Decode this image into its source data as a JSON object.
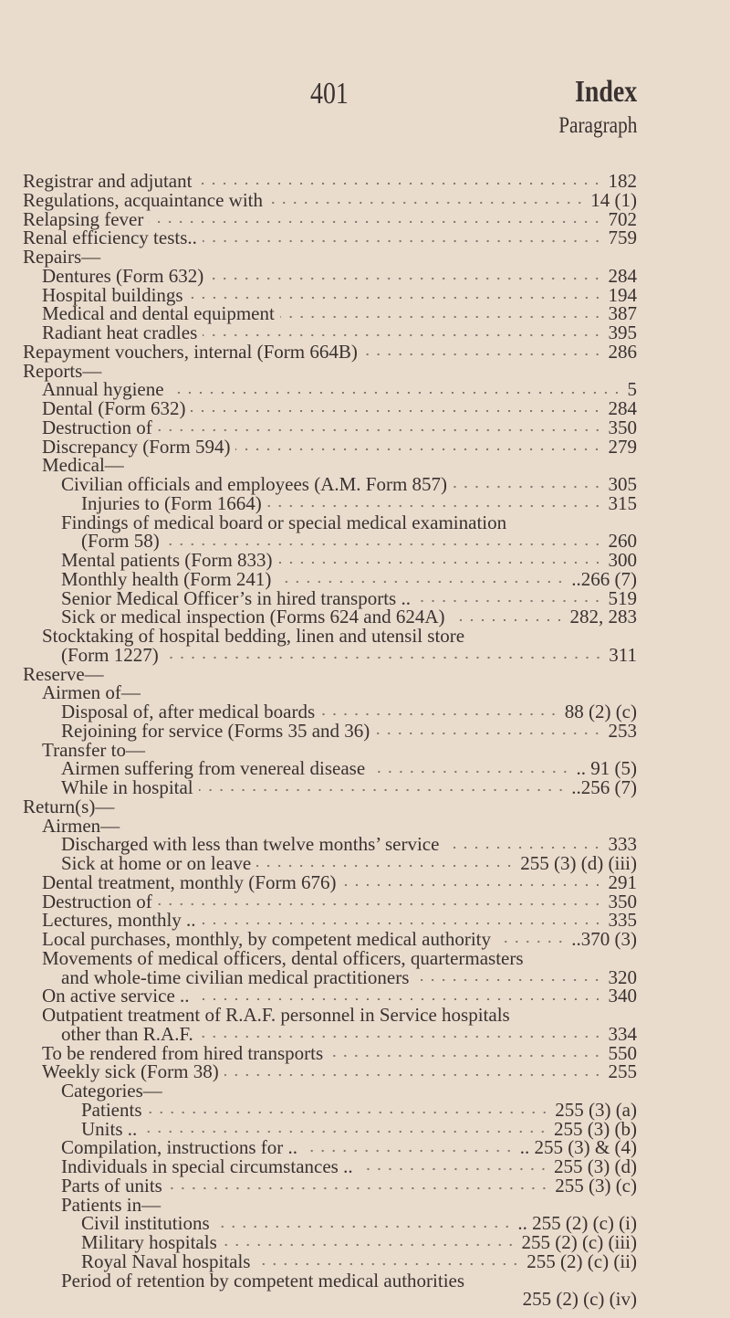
{
  "header": {
    "page_number": "401",
    "title": "Index",
    "column_label": "Paragraph"
  },
  "entries": [
    {
      "level": 0,
      "text": "Registrar and adjutant",
      "ref": "182"
    },
    {
      "level": 0,
      "text": "Regulations, acquaintance with",
      "ref": "14 (1)"
    },
    {
      "level": 0,
      "text": "Relapsing fever",
      "ref": "702"
    },
    {
      "level": 0,
      "text": "Renal efficiency tests..",
      "ref": "759"
    },
    {
      "level": 0,
      "text": "Repairs—",
      "ref": ""
    },
    {
      "level": 1,
      "text": "Dentures (Form 632)",
      "ref": "284"
    },
    {
      "level": 1,
      "text": "Hospital buildings",
      "ref": "194"
    },
    {
      "level": 1,
      "text": "Medical and dental equipment",
      "ref": "387"
    },
    {
      "level": 1,
      "text": "Radiant heat cradles",
      "ref": "395"
    },
    {
      "level": 0,
      "text": "Repayment vouchers, internal (Form 664B)",
      "ref": "286"
    },
    {
      "level": 0,
      "text": "Reports—",
      "ref": ""
    },
    {
      "level": 1,
      "text": "Annual hygiene",
      "ref": "5"
    },
    {
      "level": 1,
      "text": "Dental (Form 632)",
      "ref": "284"
    },
    {
      "level": 1,
      "text": "Destruction of",
      "ref": "350"
    },
    {
      "level": 1,
      "text": "Discrepancy (Form 594)",
      "ref": "279"
    },
    {
      "level": 1,
      "text": "Medical—",
      "ref": ""
    },
    {
      "level": 2,
      "text": "Civilian officials and employees (A.M. Form 857)",
      "ref": "305"
    },
    {
      "level": 3,
      "text": "Injuries to (Form 1664)",
      "ref": "315"
    },
    {
      "level": 2,
      "text": "Findings of medical board or special medical examination",
      "ref": ""
    },
    {
      "level": 3,
      "text": "(Form 58)",
      "ref": "260"
    },
    {
      "level": 2,
      "text": "Mental patients (Form 833)",
      "ref": "300"
    },
    {
      "level": 2,
      "text": "Monthly health (Form 241)",
      "ref": "..266 (7)"
    },
    {
      "level": 2,
      "text": "Senior Medical Officer’s in hired transports ..",
      "ref": "519"
    },
    {
      "level": 2,
      "text": "Sick or medical inspection (Forms 624 and 624A)",
      "ref": "282, 283"
    },
    {
      "level": 1,
      "text": "Stocktaking of hospital bedding, linen and utensil store",
      "ref": ""
    },
    {
      "level": 2,
      "text": "(Form 1227)",
      "ref": "311"
    },
    {
      "level": 0,
      "text": "Reserve—",
      "ref": ""
    },
    {
      "level": 1,
      "text": "Airmen of—",
      "ref": ""
    },
    {
      "level": 2,
      "text": "Disposal of, after medical boards",
      "ref": "88 (2) (c)"
    },
    {
      "level": 2,
      "text": "Rejoining for service (Forms 35 and 36)",
      "ref": "253"
    },
    {
      "level": 1,
      "text": "Transfer to—",
      "ref": ""
    },
    {
      "level": 2,
      "text": "Airmen suffering from venereal disease",
      "ref": ".. 91 (5)"
    },
    {
      "level": 2,
      "text": "While in hospital",
      "ref": "..256 (7)"
    },
    {
      "level": 0,
      "text": "Return(s)—",
      "ref": ""
    },
    {
      "level": 1,
      "text": "Airmen—",
      "ref": ""
    },
    {
      "level": 2,
      "text": "Discharged with less than twelve months’ service",
      "ref": "333"
    },
    {
      "level": 2,
      "text": "Sick at home or on leave",
      "ref": "255 (3) (d) (iii)"
    },
    {
      "level": 1,
      "text": "Dental treatment, monthly (Form 676)",
      "ref": "291"
    },
    {
      "level": 1,
      "text": "Destruction of",
      "ref": "350"
    },
    {
      "level": 1,
      "text": "Lectures, monthly ..",
      "ref": "335"
    },
    {
      "level": 1,
      "text": "Local purchases, monthly, by competent medical authority",
      "ref": "..370 (3)"
    },
    {
      "level": 1,
      "text": "Movements of medical officers, dental officers, quartermasters",
      "ref": ""
    },
    {
      "level": 2,
      "text": "and whole-time civilian medical practitioners",
      "ref": "320"
    },
    {
      "level": 1,
      "text": "On active service ..",
      "ref": "340"
    },
    {
      "level": 1,
      "text": "Outpatient treatment of R.A.F. personnel in Service hospitals",
      "ref": ""
    },
    {
      "level": 2,
      "text": "other than R.A.F.",
      "ref": "334"
    },
    {
      "level": 1,
      "text": "To be rendered from hired transports",
      "ref": "550"
    },
    {
      "level": 1,
      "text": "Weekly sick (Form 38)",
      "ref": "255"
    },
    {
      "level": 2,
      "text": "Categories—",
      "ref": ""
    },
    {
      "level": 3,
      "text": "Patients",
      "ref": "255 (3) (a)"
    },
    {
      "level": 3,
      "text": "Units ..",
      "ref": "255 (3) (b)"
    },
    {
      "level": 2,
      "text": "Compilation, instructions for ..",
      "ref": ".. 255 (3) & (4)"
    },
    {
      "level": 2,
      "text": "Individuals in special circumstances ..",
      "ref": "255 (3) (d)"
    },
    {
      "level": 2,
      "text": "Parts of units",
      "ref": "255 (3) (c)"
    },
    {
      "level": 2,
      "text": "Patients in—",
      "ref": ""
    },
    {
      "level": 3,
      "text": "Civil institutions",
      "ref": ".. 255 (2) (c) (i)"
    },
    {
      "level": 3,
      "text": "Military hospitals",
      "ref": "255 (2) (c) (iii)"
    },
    {
      "level": 3,
      "text": "Royal Naval hospitals",
      "ref": "255 (2) (c) (ii)"
    },
    {
      "level": 2,
      "text": "Period of retention by competent medical authorities",
      "ref": ""
    },
    {
      "level": "right",
      "text": "",
      "ref": "255 (2) (c) (iv)"
    }
  ]
}
